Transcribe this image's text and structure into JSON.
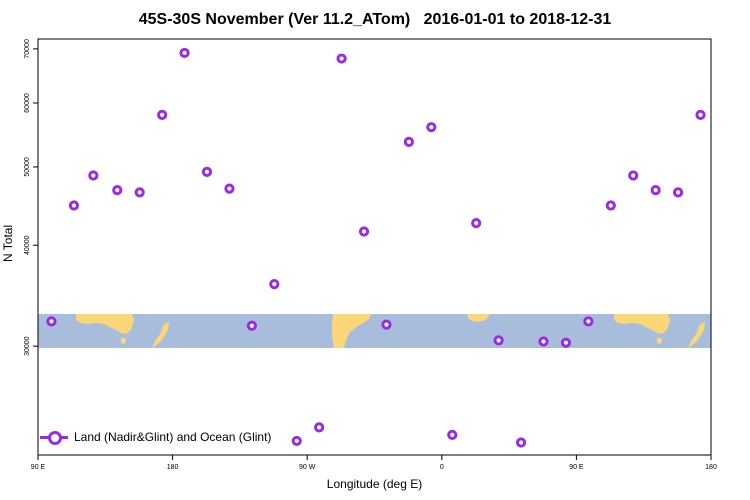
{
  "chart_data": {
    "type": "scatter",
    "title": "45S-30S November (Ver 11.2_ATom)   2016-01-01 to 2018-12-31",
    "xlabel": "Longitude (deg E)",
    "ylabel": "N Total",
    "x_tick_labels": [
      "90 E",
      "180",
      "90 W",
      "0",
      "90 E",
      "180"
    ],
    "x_tick_values": [
      90,
      180,
      270,
      360,
      450,
      540
    ],
    "xlim": [
      90,
      540
    ],
    "y_scale": "log",
    "y_tick_labels": [
      "30000",
      "40000",
      "50000",
      "60000",
      "70000"
    ],
    "y_tick_values": [
      30000,
      40000,
      50000,
      60000,
      70000
    ],
    "ylim": [
      22000,
      72000
    ],
    "grid": false,
    "legend_position": "bottom-left",
    "background_map": "equirectangular world map strip (ocean blue, land yellow) at 45S-30S",
    "colors": {
      "series": "#9b2be0",
      "ocean": "#a8bcdc",
      "land": "#fbd77a"
    },
    "series": [
      {
        "name": "Land (Nadir&Glint) and Ocean (Glint)",
        "marker": "open-circle",
        "points": [
          {
            "x": 99,
            "y": 32200
          },
          {
            "x": 114,
            "y": 44800
          },
          {
            "x": 127,
            "y": 48800
          },
          {
            "x": 143,
            "y": 46800
          },
          {
            "x": 158,
            "y": 46500
          },
          {
            "x": 173,
            "y": 58000
          },
          {
            "x": 188,
            "y": 69200
          },
          {
            "x": 203,
            "y": 49300
          },
          {
            "x": 218,
            "y": 47000
          },
          {
            "x": 233,
            "y": 31800
          },
          {
            "x": 248,
            "y": 35800
          },
          {
            "x": 263,
            "y": 22900
          },
          {
            "x": 278,
            "y": 23800
          },
          {
            "x": 293,
            "y": 68100
          },
          {
            "x": 308,
            "y": 41600
          },
          {
            "x": 323,
            "y": 31900
          },
          {
            "x": 338,
            "y": 53700
          },
          {
            "x": 353,
            "y": 56000
          },
          {
            "x": 367,
            "y": 23300
          },
          {
            "x": 383,
            "y": 42600
          },
          {
            "x": 398,
            "y": 30500
          },
          {
            "x": 413,
            "y": 22800
          },
          {
            "x": 428,
            "y": 30400
          },
          {
            "x": 443,
            "y": 30300
          },
          {
            "x": 458,
            "y": 32200
          },
          {
            "x": 473,
            "y": 44800
          },
          {
            "x": 488,
            "y": 48800
          },
          {
            "x": 503,
            "y": 46800
          },
          {
            "x": 518,
            "y": 46500
          },
          {
            "x": 533,
            "y": 58000
          }
        ]
      }
    ]
  }
}
